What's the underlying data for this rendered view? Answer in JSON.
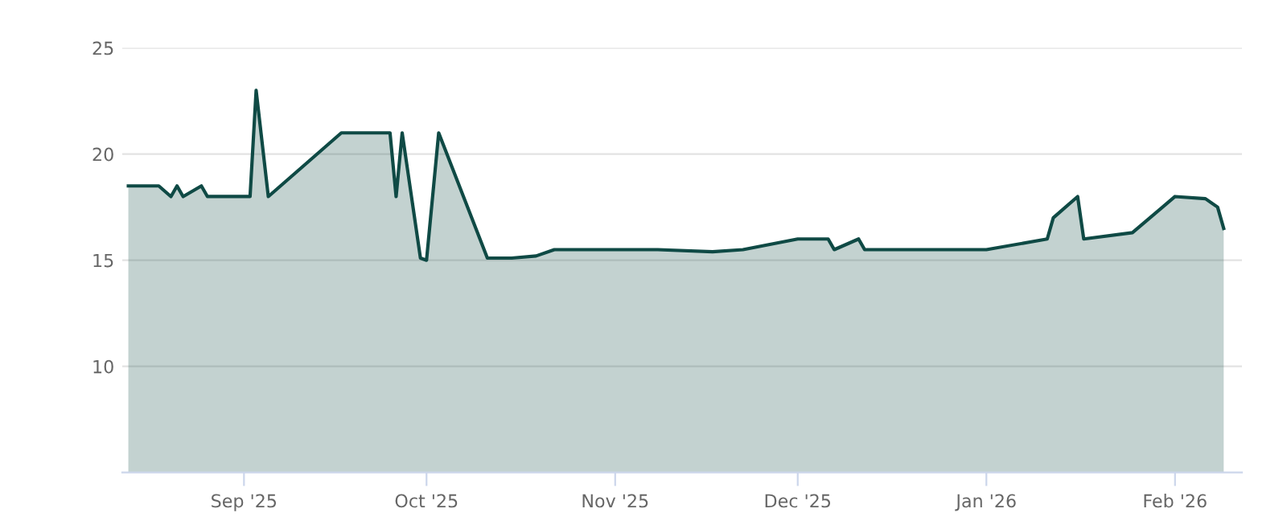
{
  "chart_data": {
    "type": "area",
    "x": [
      "2025-08-13",
      "2025-08-18",
      "2025-08-20",
      "2025-08-21",
      "2025-08-22",
      "2025-08-25",
      "2025-08-26",
      "2025-09-02",
      "2025-09-03",
      "2025-09-05",
      "2025-09-17",
      "2025-09-25",
      "2025-09-26",
      "2025-09-27",
      "2025-09-30",
      "2025-10-01",
      "2025-10-03",
      "2025-10-11",
      "2025-10-15",
      "2025-10-19",
      "2025-10-22",
      "2025-11-08",
      "2025-11-17",
      "2025-11-22",
      "2025-12-01",
      "2025-12-06",
      "2025-12-07",
      "2025-12-11",
      "2025-12-12",
      "2026-01-01",
      "2026-01-11",
      "2026-01-12",
      "2026-01-16",
      "2026-01-17",
      "2026-01-25",
      "2026-02-01",
      "2026-02-06",
      "2026-02-08",
      "2026-02-09"
    ],
    "series": [
      {
        "color": "#0f4a45",
        "values": [
          18.5,
          18.5,
          18.0,
          18.5,
          18.0,
          18.5,
          18.0,
          18.0,
          23.0,
          18.0,
          21.0,
          21.0,
          18.0,
          21.0,
          15.1,
          15.0,
          21.0,
          15.1,
          15.1,
          15.2,
          15.5,
          15.5,
          15.4,
          15.5,
          16.0,
          16.0,
          15.5,
          16.0,
          15.5,
          15.5,
          16.0,
          17.0,
          18.0,
          16.0,
          16.3,
          18.0,
          17.9,
          17.5,
          16.5
        ]
      }
    ],
    "xlim": [
      "2025-08-12",
      "2026-02-12"
    ],
    "xticks": [
      {
        "value": "2025-09-01",
        "label": "Sep '25"
      },
      {
        "value": "2025-10-01",
        "label": "Oct '25"
      },
      {
        "value": "2025-11-01",
        "label": "Nov '25"
      },
      {
        "value": "2025-12-01",
        "label": "Dec '25"
      },
      {
        "value": "2026-01-01",
        "label": "Jan '26"
      },
      {
        "value": "2026-02-01",
        "label": "Feb '26"
      }
    ],
    "ylim": [
      5,
      25
    ],
    "yticks": [
      10,
      15,
      20,
      25
    ],
    "grid": "y",
    "marker": "none",
    "line_style": "solid"
  }
}
